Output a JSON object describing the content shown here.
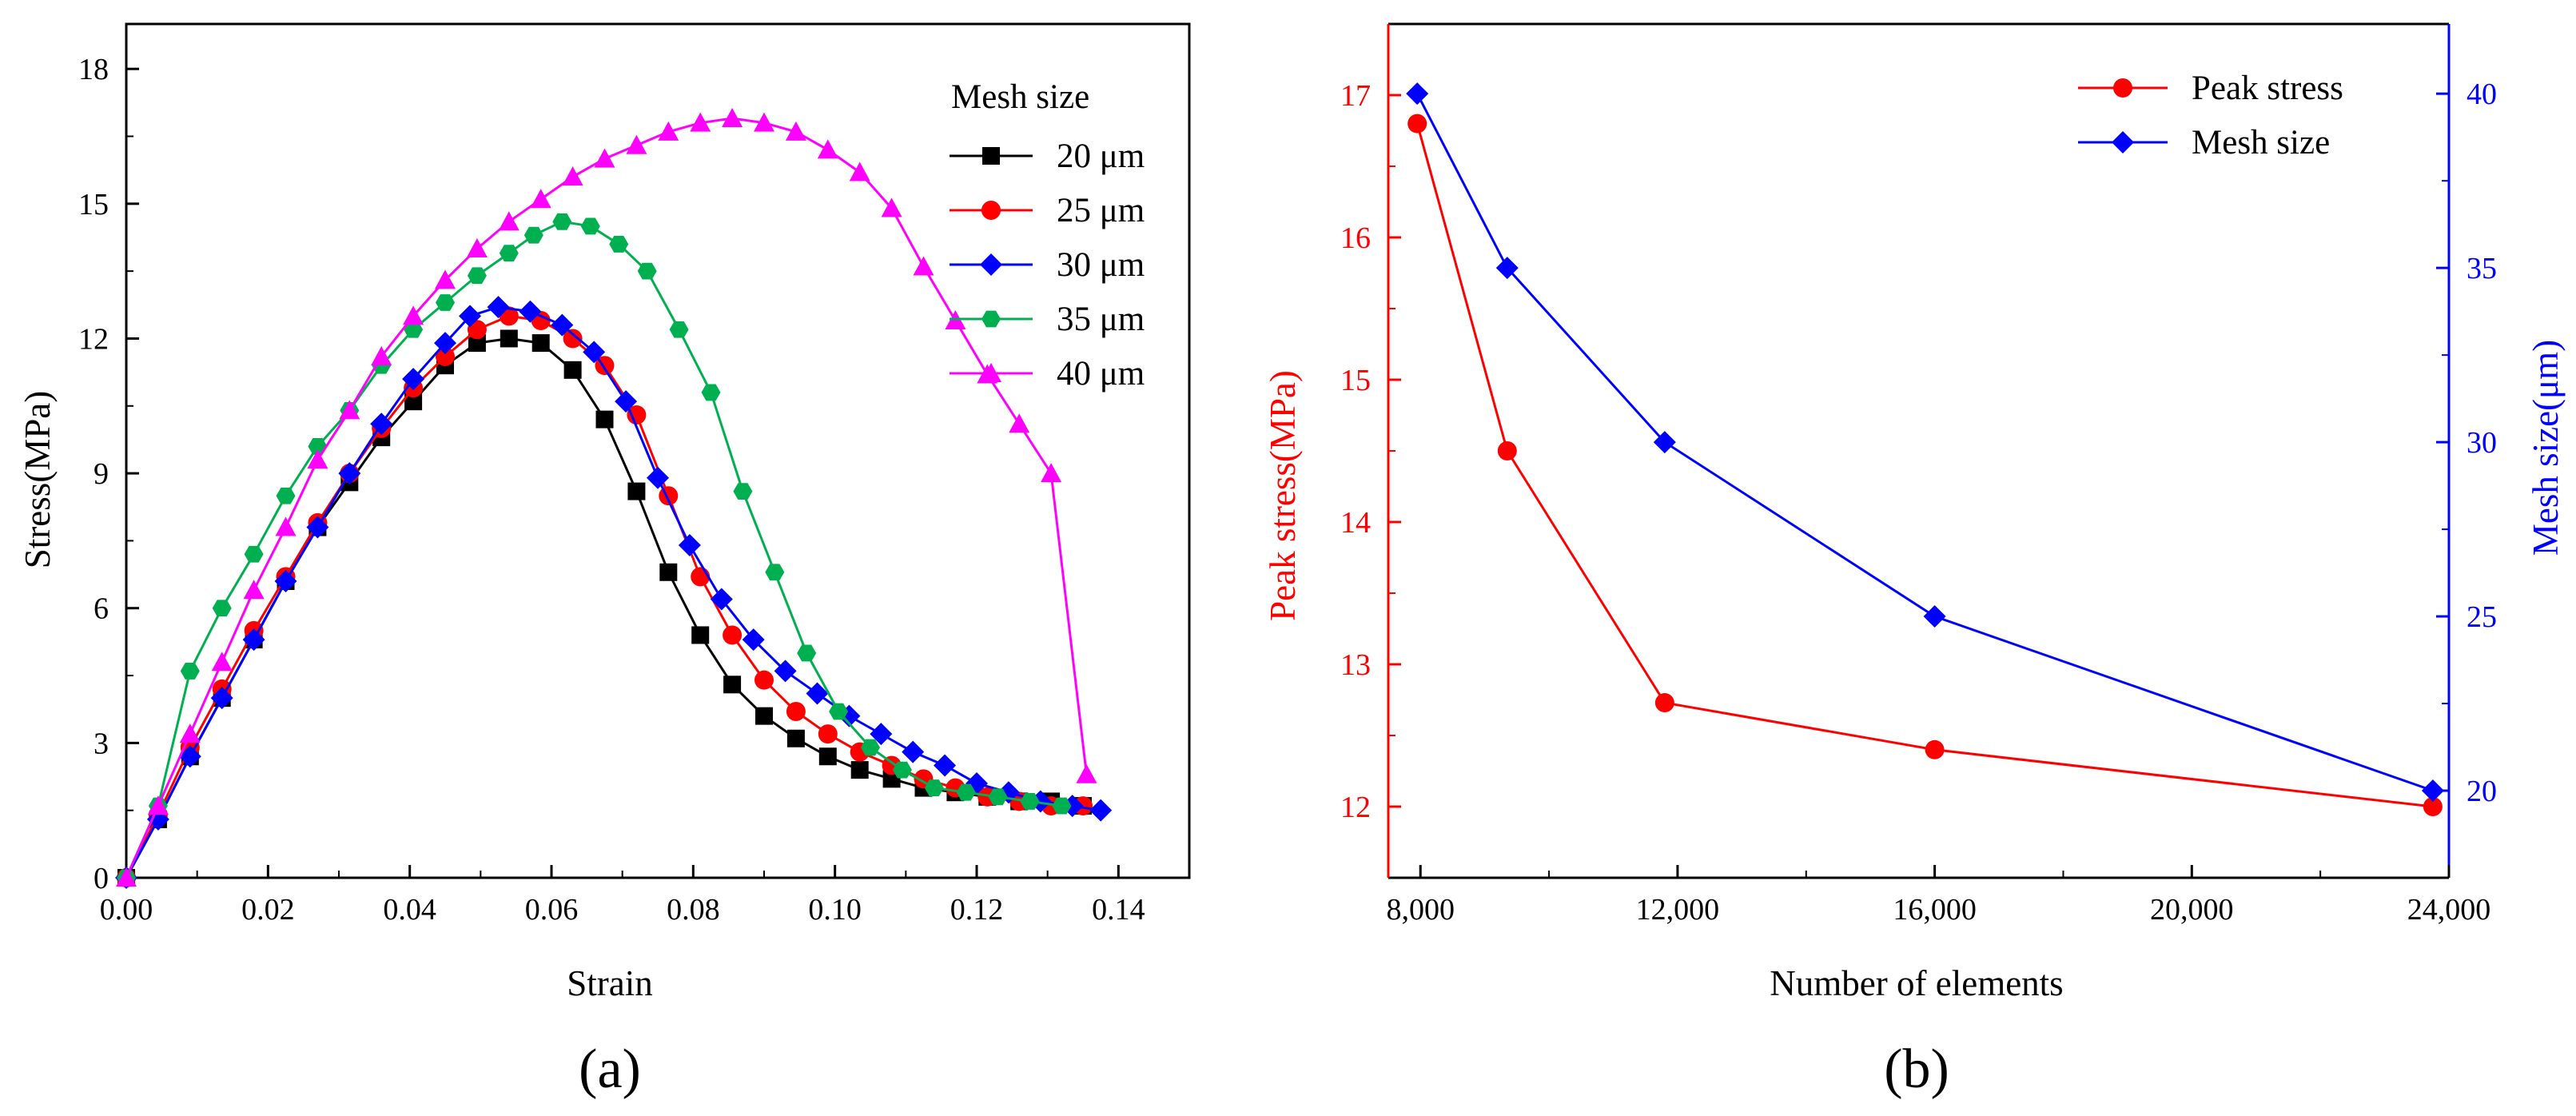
{
  "chart_data": [
    {
      "type": "line",
      "panel_label": "(a)",
      "title": "",
      "xlabel": "Strain",
      "ylabel": "Stress(MPa)",
      "xlim": [
        0,
        0.15
      ],
      "ylim": [
        0,
        19
      ],
      "xticks": [
        0.0,
        0.02,
        0.04,
        0.06,
        0.08,
        0.1,
        0.12,
        0.14
      ],
      "xtick_labels": [
        "0.00",
        "0.02",
        "0.04",
        "0.06",
        "0.08",
        "0.10",
        "0.12",
        "0.14"
      ],
      "yticks": [
        0,
        3,
        6,
        9,
        12,
        15,
        18
      ],
      "ytick_labels": [
        "0",
        "3",
        "6",
        "9",
        "12",
        "15",
        "18"
      ],
      "grid": false,
      "legend": {
        "title": "Mesh size",
        "position": "top-right"
      },
      "series": [
        {
          "name": "20 μm",
          "color": "#000000",
          "marker": "square",
          "x": [
            0.0,
            0.0045,
            0.009,
            0.0135,
            0.018,
            0.0225,
            0.027,
            0.0315,
            0.036,
            0.0405,
            0.045,
            0.0495,
            0.054,
            0.0585,
            0.063,
            0.0675,
            0.072,
            0.0765,
            0.081,
            0.0855,
            0.09,
            0.0945,
            0.099,
            0.1035,
            0.108,
            0.1125,
            0.117,
            0.1215,
            0.126,
            0.1305,
            0.135
          ],
          "y": [
            0.0,
            1.3,
            2.7,
            4.0,
            5.3,
            6.6,
            7.8,
            8.8,
            9.8,
            10.6,
            11.4,
            11.9,
            12.0,
            11.9,
            11.3,
            10.2,
            8.6,
            6.8,
            5.4,
            4.3,
            3.6,
            3.1,
            2.7,
            2.4,
            2.2,
            2.0,
            1.9,
            1.8,
            1.7,
            1.7,
            1.6
          ]
        },
        {
          "name": "25 μm",
          "color": "#ff0000",
          "marker": "circle",
          "x": [
            0.0,
            0.0045,
            0.009,
            0.0135,
            0.018,
            0.0225,
            0.027,
            0.0315,
            0.036,
            0.0405,
            0.045,
            0.0495,
            0.054,
            0.0585,
            0.063,
            0.0675,
            0.072,
            0.0765,
            0.081,
            0.0855,
            0.09,
            0.0945,
            0.099,
            0.1035,
            0.108,
            0.1125,
            0.117,
            0.1215,
            0.126,
            0.1305,
            0.135
          ],
          "y": [
            0.0,
            1.4,
            2.9,
            4.2,
            5.5,
            6.7,
            7.9,
            9.0,
            10.0,
            10.9,
            11.6,
            12.2,
            12.5,
            12.4,
            12.0,
            11.4,
            10.3,
            8.5,
            6.7,
            5.4,
            4.4,
            3.7,
            3.2,
            2.8,
            2.5,
            2.2,
            2.0,
            1.8,
            1.7,
            1.6,
            1.6
          ]
        },
        {
          "name": "30 μm",
          "color": "#0000ff",
          "marker": "diamond",
          "x": [
            0.0,
            0.0045,
            0.009,
            0.0135,
            0.018,
            0.0225,
            0.027,
            0.0315,
            0.036,
            0.0405,
            0.045,
            0.0485,
            0.0525,
            0.057,
            0.0615,
            0.066,
            0.0705,
            0.075,
            0.0795,
            0.084,
            0.0885,
            0.093,
            0.0975,
            0.102,
            0.1065,
            0.111,
            0.1155,
            0.12,
            0.1245,
            0.129,
            0.1335,
            0.1375
          ],
          "y": [
            0.0,
            1.3,
            2.7,
            4.0,
            5.3,
            6.6,
            7.8,
            9.0,
            10.1,
            11.1,
            11.9,
            12.5,
            12.7,
            12.6,
            12.3,
            11.7,
            10.6,
            8.9,
            7.4,
            6.2,
            5.3,
            4.6,
            4.1,
            3.6,
            3.2,
            2.8,
            2.5,
            2.1,
            1.9,
            1.7,
            1.6,
            1.5
          ]
        },
        {
          "name": "35 μm",
          "color": "#00b050",
          "marker": "hexagon",
          "x": [
            0.0,
            0.0045,
            0.009,
            0.0135,
            0.018,
            0.0225,
            0.027,
            0.0315,
            0.036,
            0.0405,
            0.045,
            0.0495,
            0.054,
            0.0575,
            0.0615,
            0.0655,
            0.0695,
            0.0735,
            0.078,
            0.0825,
            0.087,
            0.0915,
            0.096,
            0.1005,
            0.105,
            0.1095,
            0.114,
            0.1185,
            0.123,
            0.1275,
            0.132
          ],
          "y": [
            0.0,
            1.6,
            4.6,
            6.0,
            7.2,
            8.5,
            9.6,
            10.4,
            11.4,
            12.2,
            12.8,
            13.4,
            13.9,
            14.3,
            14.6,
            14.5,
            14.1,
            13.5,
            12.2,
            10.8,
            8.6,
            6.8,
            5.0,
            3.7,
            2.9,
            2.4,
            2.0,
            1.9,
            1.8,
            1.7,
            1.6
          ]
        },
        {
          "name": "40 μm",
          "color": "#ff00ff",
          "marker": "triangle",
          "x": [
            0.0,
            0.0045,
            0.009,
            0.0135,
            0.018,
            0.0225,
            0.027,
            0.0315,
            0.036,
            0.0405,
            0.045,
            0.0495,
            0.054,
            0.0585,
            0.063,
            0.0675,
            0.072,
            0.0765,
            0.081,
            0.0855,
            0.09,
            0.0945,
            0.099,
            0.1035,
            0.108,
            0.1125,
            0.117,
            0.1215,
            0.126,
            0.1305,
            0.1355
          ],
          "y": [
            0.0,
            1.6,
            3.2,
            4.8,
            6.4,
            7.8,
            9.3,
            10.4,
            11.6,
            12.5,
            13.3,
            14.0,
            14.6,
            15.1,
            15.6,
            16.0,
            16.3,
            16.6,
            16.8,
            16.9,
            16.8,
            16.6,
            16.2,
            15.7,
            14.9,
            13.6,
            12.4,
            11.2,
            10.1,
            9.0,
            2.3
          ]
        }
      ]
    },
    {
      "type": "line",
      "panel_label": "(b)",
      "title": "",
      "xlabel": "Number of elements",
      "ylabel": "Peak stress(MPa)",
      "y2label": "Mesh size(μm)",
      "xlim": [
        7500,
        24000
      ],
      "ylim": [
        11.5,
        17.5
      ],
      "y2lim": [
        17.5,
        42
      ],
      "xticks": [
        8000,
        12000,
        16000,
        20000,
        24000
      ],
      "xtick_labels": [
        "8,000",
        "12,000",
        "16,000",
        "20,000",
        "24,000"
      ],
      "yticks": [
        12,
        13,
        14,
        15,
        16,
        17
      ],
      "ytick_labels": [
        "12",
        "13",
        "14",
        "15",
        "16",
        "17"
      ],
      "y2ticks": [
        20,
        25,
        30,
        35,
        40
      ],
      "y2tick_labels": [
        "20",
        "25",
        "30",
        "35",
        "40"
      ],
      "grid": false,
      "legend": {
        "position": "top-right"
      },
      "series": [
        {
          "name": "Peak stress",
          "color": "#ff0000",
          "marker": "circle",
          "axis": "left",
          "x": [
            7950,
            9350,
            11800,
            16000,
            23750
          ],
          "y": [
            16.8,
            14.5,
            12.73,
            12.4,
            12.0
          ]
        },
        {
          "name": "Mesh size",
          "color": "#0000ff",
          "marker": "diamond",
          "axis": "right",
          "x": [
            7950,
            9350,
            11800,
            16000,
            23750
          ],
          "y": [
            40,
            35,
            30,
            25,
            20
          ]
        }
      ]
    }
  ]
}
